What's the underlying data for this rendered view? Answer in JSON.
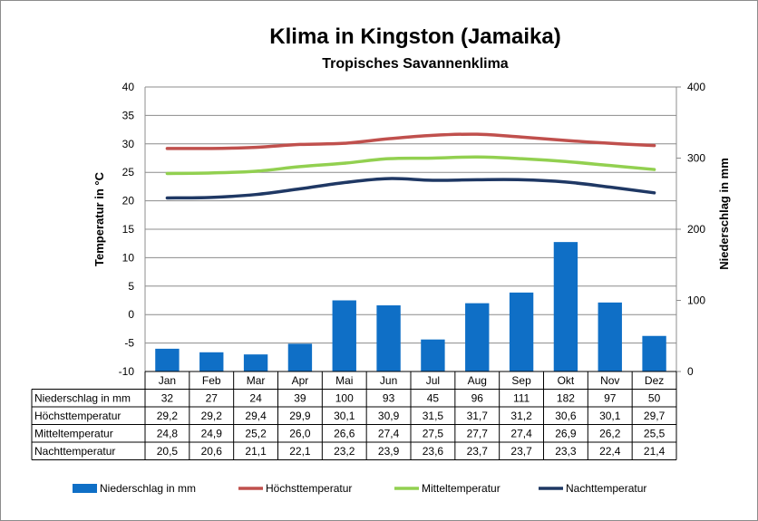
{
  "chart_data": {
    "type": "bar",
    "title": "Klima in Kingston (Jamaika)",
    "subtitle": "Tropisches Savannenklima",
    "categories": [
      "Jan",
      "Feb",
      "Mar",
      "Apr",
      "Mai",
      "Jun",
      "Jul",
      "Aug",
      "Sep",
      "Okt",
      "Nov",
      "Dez"
    ],
    "y_left": {
      "label": "Temperatur in °C",
      "range": [
        -10,
        40
      ],
      "ticks": [
        "40",
        "35",
        "30",
        "25",
        "20",
        "15",
        "10",
        "5",
        "0",
        "-5",
        "-10"
      ]
    },
    "y_right": {
      "label": "Niederschlag in mm",
      "range": [
        0,
        400
      ],
      "ticks": [
        "400",
        "300",
        "200",
        "100",
        "0"
      ]
    },
    "grid": true,
    "legend": "bottom",
    "series": [
      {
        "name": "Niederschlag in mm",
        "type": "bar",
        "axis": "right",
        "color": "#0F6FC6",
        "values": [
          32,
          27,
          24,
          39,
          100,
          93,
          45,
          96,
          111,
          182,
          97,
          50
        ],
        "labels": [
          "32",
          "27",
          "24",
          "39",
          "100",
          "93",
          "45",
          "96",
          "111",
          "182",
          "97",
          "50"
        ]
      },
      {
        "name": "Höchsttemperatur",
        "type": "line",
        "axis": "left",
        "color": "#C0504D",
        "values": [
          29.2,
          29.2,
          29.4,
          29.9,
          30.1,
          30.9,
          31.5,
          31.7,
          31.2,
          30.6,
          30.1,
          29.7
        ],
        "labels": [
          "29,2",
          "29,2",
          "29,4",
          "29,9",
          "30,1",
          "30,9",
          "31,5",
          "31,7",
          "31,2",
          "30,6",
          "30,1",
          "29,7"
        ]
      },
      {
        "name": "Mitteltemperatur",
        "type": "line",
        "axis": "left",
        "color": "#92D050",
        "values": [
          24.8,
          24.9,
          25.2,
          26.0,
          26.6,
          27.4,
          27.5,
          27.7,
          27.4,
          26.9,
          26.2,
          25.5
        ],
        "labels": [
          "24,8",
          "24,9",
          "25,2",
          "26,0",
          "26,6",
          "27,4",
          "27,5",
          "27,7",
          "27,4",
          "26,9",
          "26,2",
          "25,5"
        ]
      },
      {
        "name": "Nachttemperatur",
        "type": "line",
        "axis": "left",
        "color": "#1F3864",
        "values": [
          20.5,
          20.6,
          21.1,
          22.1,
          23.2,
          23.9,
          23.6,
          23.7,
          23.7,
          23.3,
          22.4,
          21.4
        ],
        "labels": [
          "20,5",
          "20,6",
          "21,1",
          "22,1",
          "23,2",
          "23,9",
          "23,6",
          "23,7",
          "23,7",
          "23,3",
          "22,4",
          "21,4"
        ]
      }
    ]
  }
}
